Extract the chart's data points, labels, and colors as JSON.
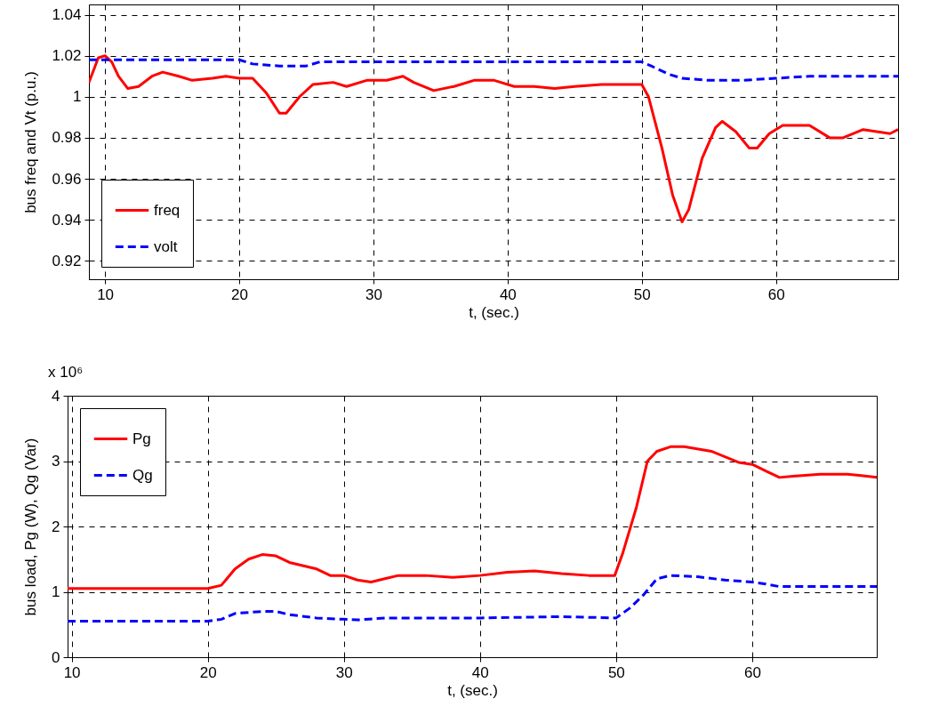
{
  "chart_data": [
    {
      "type": "line",
      "xlabel": "t, (sec.)",
      "ylabel": "bus freq and Vt (p.u.)",
      "xlim": [
        8.8,
        69.1
      ],
      "xticks": [
        10,
        20,
        30,
        40,
        50,
        60
      ],
      "ylim": [
        0.911,
        1.045
      ],
      "yticks": [
        0.92,
        0.94,
        0.96,
        0.98,
        1,
        1.02,
        1.04
      ],
      "grid": true,
      "legend": "bottom left",
      "series": [
        {
          "name": "freq",
          "color": "#ff0000",
          "line_style": "solid",
          "x": [
            8.8,
            9.5,
            10,
            10.5,
            11,
            11.7,
            12.5,
            13.5,
            14.3,
            15.5,
            16.5,
            18,
            19,
            20,
            21,
            22,
            23,
            23.5,
            24.5,
            25.5,
            27,
            28,
            29.5,
            31,
            32.2,
            33,
            34.5,
            36,
            37.5,
            39,
            40.5,
            42,
            43.5,
            45,
            47,
            49,
            50,
            50.5,
            51.5,
            52.3,
            53,
            53.5,
            54.5,
            55.5,
            56,
            57,
            58,
            58.6,
            59.5,
            60.5,
            62.5,
            64,
            65,
            66.5,
            67.5,
            68.5,
            69.1
          ],
          "values": [
            1.007,
            1.019,
            1.02,
            1.017,
            1.01,
            1.004,
            1.005,
            1.01,
            1.012,
            1.01,
            1.008,
            1.009,
            1.01,
            1.009,
            1.009,
            1.002,
            0.992,
            0.992,
            1,
            1.006,
            1.007,
            1.005,
            1.008,
            1.008,
            1.01,
            1.007,
            1.003,
            1.005,
            1.008,
            1.008,
            1.005,
            1.005,
            1.004,
            1.005,
            1.006,
            1.006,
            1.006,
            1,
            0.975,
            0.952,
            0.939,
            0.945,
            0.97,
            0.985,
            0.988,
            0.983,
            0.975,
            0.975,
            0.982,
            0.986,
            0.986,
            0.98,
            0.98,
            0.984,
            0.983,
            0.982,
            0.984
          ]
        },
        {
          "name": "volt",
          "color": "#0000ff",
          "line_style": "dashed",
          "x": [
            8.8,
            20,
            21,
            23,
            25,
            26,
            30,
            40,
            50,
            50.7,
            52,
            53,
            55,
            57.5,
            60,
            62.5,
            69.1
          ],
          "values": [
            1.018,
            1.018,
            1.016,
            1.015,
            1.015,
            1.017,
            1.017,
            1.017,
            1.017,
            1.015,
            1.011,
            1.009,
            1.008,
            1.008,
            1.009,
            1.01,
            1.01
          ]
        }
      ]
    },
    {
      "type": "line",
      "xlabel": "t, (sec.)",
      "ylabel": "bus load, Pg (W), Qg (Var)",
      "annotations": [
        "x 10⁶"
      ],
      "xlim": [
        9.7,
        69.15
      ],
      "xticks": [
        10,
        20,
        30,
        40,
        50,
        60
      ],
      "ylim": [
        0,
        4
      ],
      "yticks": [
        0,
        1,
        2,
        3,
        4
      ],
      "grid": true,
      "legend": "top left",
      "series": [
        {
          "name": "Pg",
          "color": "#ff0000",
          "line_style": "solid",
          "x": [
            9.7,
            20,
            21,
            22,
            23,
            24,
            25,
            26,
            28,
            29,
            30,
            31,
            32,
            33,
            34,
            36,
            38,
            40,
            42,
            44,
            46,
            48,
            49.9,
            50.5,
            51.5,
            52.3,
            53,
            54,
            55,
            57,
            59,
            60,
            61,
            62,
            63,
            65,
            67,
            68,
            69.15
          ],
          "values": [
            1.05,
            1.05,
            1.1,
            1.35,
            1.5,
            1.57,
            1.55,
            1.45,
            1.35,
            1.25,
            1.25,
            1.18,
            1.15,
            1.2,
            1.25,
            1.25,
            1.22,
            1.25,
            1.3,
            1.32,
            1.28,
            1.25,
            1.25,
            1.6,
            2.3,
            3,
            3.15,
            3.22,
            3.22,
            3.15,
            2.98,
            2.95,
            2.85,
            2.75,
            2.77,
            2.8,
            2.8,
            2.78,
            2.75
          ]
        },
        {
          "name": "Qg",
          "color": "#0000ff",
          "line_style": "dashed",
          "x": [
            9.7,
            20,
            21,
            22,
            24,
            25,
            26,
            28,
            30,
            31,
            33,
            40,
            46,
            50,
            51,
            52,
            53,
            54,
            56,
            58,
            60,
            61,
            62,
            69.15
          ],
          "values": [
            0.55,
            0.55,
            0.58,
            0.67,
            0.7,
            0.7,
            0.65,
            0.6,
            0.58,
            0.57,
            0.6,
            0.6,
            0.62,
            0.6,
            0.75,
            0.95,
            1.2,
            1.25,
            1.23,
            1.18,
            1.15,
            1.12,
            1.08,
            1.08
          ]
        }
      ]
    }
  ]
}
